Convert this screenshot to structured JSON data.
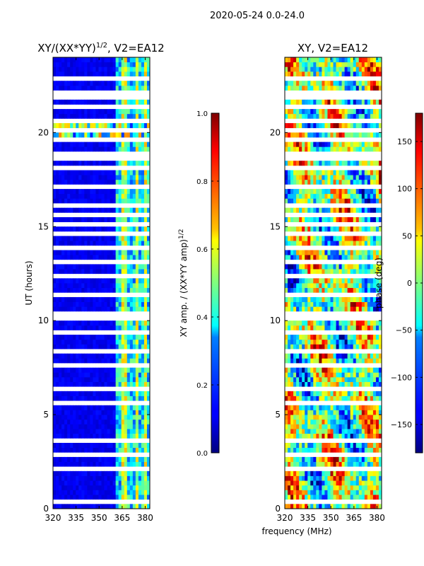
{
  "chart_data": {
    "suptitle": "2020-05-24 0.0-24.0",
    "shared_xlabel": "frequency (MHz)",
    "panels": [
      {
        "id": "amp",
        "type": "heatmap",
        "title": "XY/(XX*YY)¹ᐟ², V2=EA12",
        "title_main": "XY/(XX*YY)",
        "title_exp": "1/2",
        "title_tail": ", V2=EA12",
        "ylabel": "UT (hours)",
        "xlim": [
          320,
          383
        ],
        "ylim": [
          0,
          24
        ],
        "xticks": [
          320,
          335,
          350,
          365,
          380
        ],
        "yticks": [
          0,
          5,
          10,
          15,
          20
        ],
        "colorbar": {
          "label": "XY amp. / (XX*YY amp)",
          "label_exp": "1/2",
          "range": [
            0.0,
            1.0
          ],
          "ticks": [
            0.0,
            0.2,
            0.4,
            0.6,
            0.8,
            1.0
          ],
          "tick_labels": [
            "0.0",
            "0.2",
            "0.4",
            "0.6",
            "0.8",
            "1.0"
          ]
        }
      },
      {
        "id": "phase",
        "type": "heatmap",
        "title": "XY, V2=EA12",
        "xlim": [
          320,
          383
        ],
        "ylim": [
          0,
          24
        ],
        "xticks": [
          320,
          335,
          350,
          365,
          380
        ],
        "yticks": [
          0,
          5,
          10,
          15,
          20
        ],
        "colorbar": {
          "label": "phase (deg)",
          "range": [
            -180,
            180
          ],
          "ticks": [
            150,
            100,
            50,
            0,
            -50,
            -100,
            -150
          ],
          "tick_labels": [
            "150",
            "100",
            "50",
            "0",
            "−50",
            "−100",
            "−150"
          ]
        }
      }
    ]
  }
}
